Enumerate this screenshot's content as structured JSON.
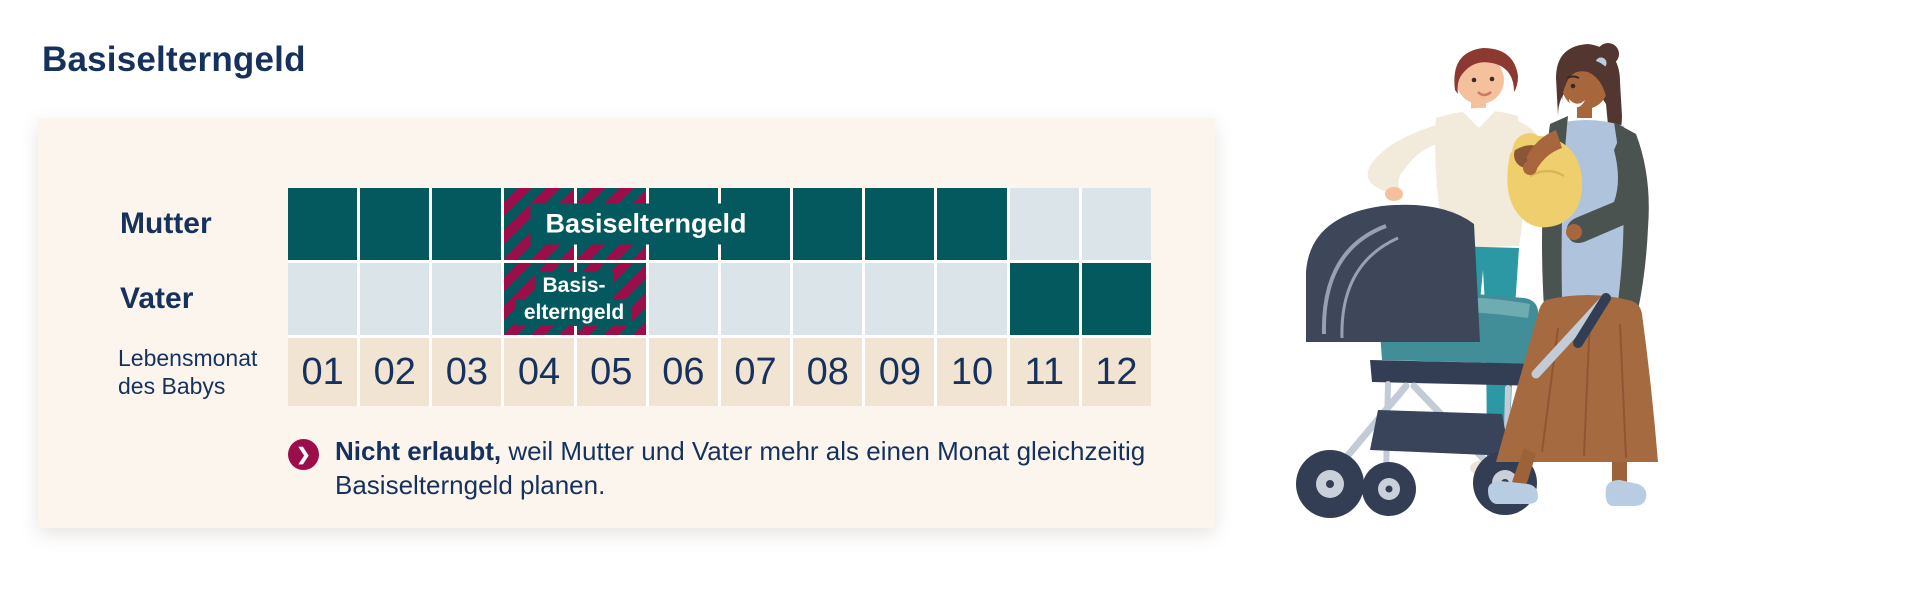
{
  "title": "Basiselterngeld",
  "colors": {
    "navy": "#16325C",
    "teal": "#04595F",
    "light_cell": "#DBE4E9",
    "month_cell": "#F2E4D3",
    "panel_bg": "#FBF5EE",
    "crimson": "#9C0E4A",
    "white": "#FFFFFF"
  },
  "chart_data": {
    "type": "timeline-grid",
    "title": "Basiselterngeld",
    "x_axis_label": "Lebensmonat des Babys",
    "months": [
      "01",
      "02",
      "03",
      "04",
      "05",
      "06",
      "07",
      "08",
      "09",
      "10",
      "11",
      "12"
    ],
    "rows": [
      {
        "label": "Mutter",
        "bar_label": "Basiselterngeld",
        "cells": [
          "basiselterngeld",
          "basiselterngeld",
          "basiselterngeld",
          "conflict",
          "conflict",
          "basiselterngeld",
          "basiselterngeld",
          "basiselterngeld",
          "basiselterngeld",
          "basiselterngeld",
          "empty",
          "empty"
        ]
      },
      {
        "label": "Vater",
        "bar_label_lines": [
          "Basis-",
          "elterngeld"
        ],
        "cells": [
          "empty",
          "empty",
          "empty",
          "conflict",
          "conflict",
          "empty",
          "empty",
          "empty",
          "empty",
          "empty",
          "basiselterngeld",
          "basiselterngeld"
        ]
      }
    ]
  },
  "note": {
    "line1_bold": "Nicht erlaubt,",
    "line1_rest": "weil Mutter und Vater mehr als einen Monat gleichzeitig",
    "line2": "Basiselterngeld planen."
  },
  "icons": {
    "chevron_right": "❯"
  },
  "illustration": {
    "name": "parents-with-baby-and-stroller"
  }
}
